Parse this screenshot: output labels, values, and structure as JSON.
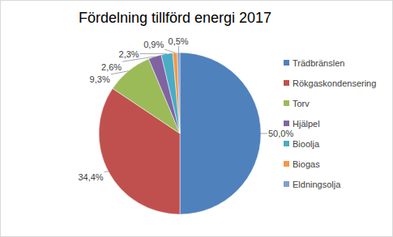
{
  "chart_data": {
    "type": "pie",
    "title": "Fördelning tillförd energi 2017",
    "categories": [
      "Trädbränslen",
      "Rökgaskondensering",
      "Torv",
      "Hjälpel",
      "Bioolja",
      "Biogas",
      "Eldningsolja"
    ],
    "values": [
      50.0,
      34.4,
      9.3,
      2.6,
      2.3,
      0.9,
      0.5
    ],
    "value_labels": [
      "50,0%",
      "34,4%",
      "9,3%",
      "2,6%",
      "2,3%",
      "0,9%",
      "0,5%"
    ],
    "colors": [
      "#4f81bd",
      "#c0504d",
      "#9bbb59",
      "#8064a2",
      "#4bacc6",
      "#f79646",
      "#7f9fd0"
    ],
    "data_labels": true,
    "legend": "right"
  }
}
